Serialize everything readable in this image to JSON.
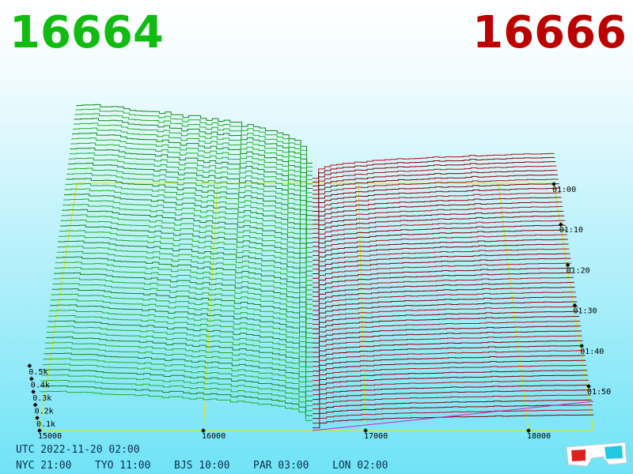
{
  "header": {
    "bid": "16664",
    "ask": "16666"
  },
  "price_axis": {
    "ticks": [
      "15000",
      "16000",
      "17000",
      "18000"
    ]
  },
  "depth_axis": {
    "ticks": [
      "0.1k",
      "0.2k",
      "0.3k",
      "0.4k",
      "0.5k"
    ]
  },
  "time_axis": {
    "ticks": [
      "01:00",
      "01:10",
      "01:20",
      "01:30",
      "01:40",
      "01:50"
    ]
  },
  "footer": {
    "utc": "UTC 2022-11-20 02:00",
    "zones": [
      "NYC 21:00",
      "TYO 11:00",
      "BJS 10:00",
      "PAR 03:00",
      "LON 02:00"
    ]
  }
}
